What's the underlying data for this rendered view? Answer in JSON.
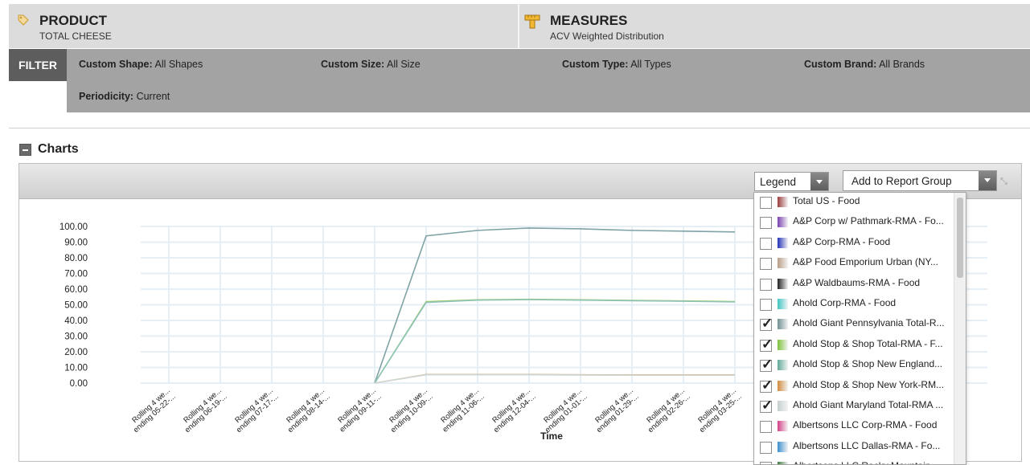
{
  "header": {
    "product": {
      "title": "PRODUCT",
      "value": "TOTAL CHEESE",
      "icon": "tag-icon"
    },
    "measures": {
      "title": "MEASURES",
      "value": "ACV Weighted Distribution",
      "icon": "ruler-icon"
    }
  },
  "filter": {
    "tag": "FILTER",
    "items": [
      {
        "label": "Custom Shape:",
        "value": "All Shapes"
      },
      {
        "label": "Custom Size:",
        "value": "All Size"
      },
      {
        "label": "Custom Type:",
        "value": "All Types"
      },
      {
        "label": "Custom Brand:",
        "value": "All Brands"
      },
      {
        "label": "Periodicity:",
        "value": "Current"
      }
    ]
  },
  "charts": {
    "title": "Charts",
    "legend_select": "Legend",
    "report_group_select": "Add to Report Group"
  },
  "chart_data": {
    "type": "line",
    "xlabel": "Time",
    "ylabel": "",
    "ylim": [
      0,
      100
    ],
    "yticks": [
      "100.00",
      "90.00",
      "80.00",
      "70.00",
      "60.00",
      "50.00",
      "40.00",
      "30.00",
      "20.00",
      "10.00",
      "0.00"
    ],
    "categories": [
      "Rolling 4 we... ending 05-22-...",
      "Rolling 4 we... ending 06-19-...",
      "Rolling 4 we... ending 07-17-...",
      "Rolling 4 we... ending 08-14-...",
      "Rolling 4 we... ending 09-11-...",
      "Rolling 4 we... ending 10-09-...",
      "Rolling 4 we... ending 11-06-...",
      "Rolling 4 we... ending 12-04-...",
      "Rolling 4 we... ending 01-01-...",
      "Rolling 4 we... ending 01-29-...",
      "Rolling 4 we... ending 02-26-...",
      "Rolling 4 we... ending 03-25-..."
    ],
    "series": [
      {
        "color": "#7fa3a6",
        "values": [
          null,
          null,
          null,
          null,
          0,
          94,
          97.5,
          99,
          98.5,
          97.5,
          97,
          96.5
        ]
      },
      {
        "color": "#9ccc55",
        "values": [
          null,
          null,
          null,
          null,
          0,
          52,
          53.2,
          53.5,
          53.2,
          52.8,
          52.5,
          52
        ]
      },
      {
        "color": "#8fc3ba",
        "values": [
          null,
          null,
          null,
          null,
          0,
          51.5,
          53,
          53.3,
          53,
          52.6,
          52.3,
          51.8
        ]
      },
      {
        "color": "#d9a86e",
        "values": [
          null,
          null,
          null,
          null,
          0,
          5.5,
          5.5,
          5.5,
          5.3,
          5.2,
          5.2,
          5.2
        ]
      },
      {
        "color": "#cfd8d8",
        "values": [
          null,
          null,
          null,
          null,
          0,
          5.3,
          5.3,
          5.3,
          5.1,
          5.0,
          5.0,
          5.0
        ]
      }
    ]
  },
  "legend": {
    "items": [
      {
        "label": "Total US - Food",
        "checked": false,
        "color": "#9b3c3c"
      },
      {
        "label": "A&P Corp w/ Pathmark-RMA - Fo...",
        "checked": false,
        "color": "#7a3fb0"
      },
      {
        "label": "A&P Corp-RMA - Food",
        "checked": false,
        "color": "#2330b8"
      },
      {
        "label": "A&P Food Emporium Urban (NY...",
        "checked": false,
        "color": "#b89c86"
      },
      {
        "label": "A&P Waldbaums-RMA - Food",
        "checked": false,
        "color": "#222222"
      },
      {
        "label": "Ahold Corp-RMA - Food",
        "checked": false,
        "color": "#3ec4c4"
      },
      {
        "label": "Ahold Giant Pennsylvania Total-R...",
        "checked": true,
        "color": "#6f8f92"
      },
      {
        "label": "Ahold Stop & Shop Total-RMA - F...",
        "checked": true,
        "color": "#7bc13a"
      },
      {
        "label": "Ahold Stop & Shop New England...",
        "checked": true,
        "color": "#5fa898"
      },
      {
        "label": "Ahold Stop & Shop New York-RM...",
        "checked": true,
        "color": "#d08a3c"
      },
      {
        "label": "Ahold Giant Maryland Total-RMA ...",
        "checked": true,
        "color": "#c5cece"
      },
      {
        "label": "Albertsons LLC Corp-RMA - Food",
        "checked": false,
        "color": "#d33f86"
      },
      {
        "label": "Albertsons LLC Dallas-RMA - Fo...",
        "checked": false,
        "color": "#3b8fd0"
      },
      {
        "label": "Albertsons LLC Rocky Mountain...",
        "checked": false,
        "color": "#3c7a3c"
      }
    ]
  }
}
